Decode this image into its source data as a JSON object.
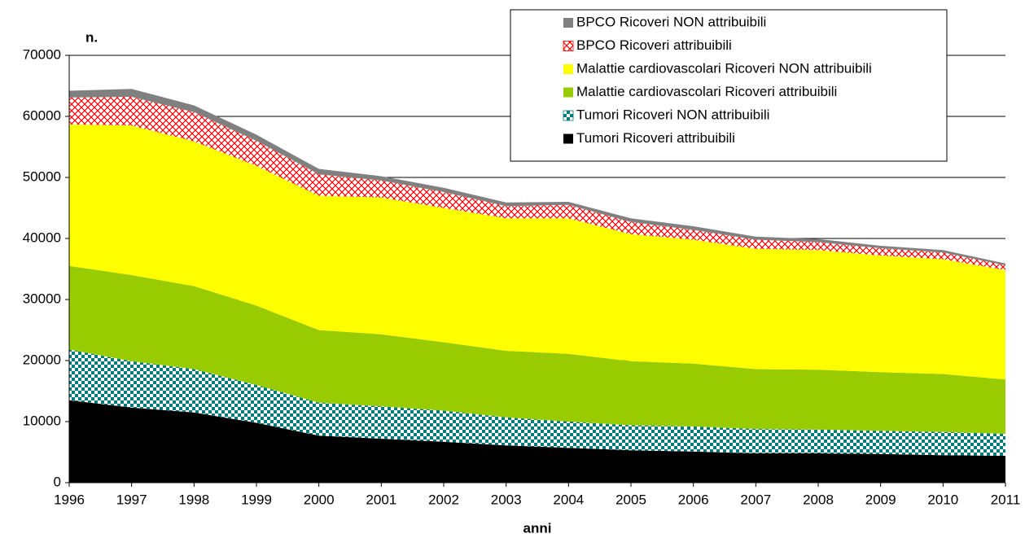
{
  "chart_data": {
    "type": "area",
    "stacked": true,
    "y_label": "n.",
    "x_label": "anni",
    "x": [
      1996,
      1997,
      1998,
      1999,
      2000,
      2001,
      2002,
      2003,
      2004,
      2005,
      2006,
      2007,
      2008,
      2009,
      2010,
      2011
    ],
    "xlim": [
      1996,
      2011
    ],
    "xticks": [
      1996,
      1997,
      1998,
      1999,
      2000,
      2001,
      2002,
      2003,
      2004,
      2005,
      2006,
      2007,
      2008,
      2009,
      2010,
      2011
    ],
    "ylim": [
      0,
      70000
    ],
    "yticks": [
      0,
      10000,
      20000,
      30000,
      40000,
      50000,
      60000,
      70000
    ],
    "grid": true,
    "legend": "upper right",
    "series": [
      {
        "name": "Tumori Ricoveri attribuibili",
        "color": "#000000",
        "pattern": "solid",
        "values": [
          13500,
          12300,
          11500,
          9800,
          7700,
          7200,
          6700,
          6100,
          5700,
          5300,
          5100,
          4800,
          4800,
          4700,
          4500,
          4400
        ]
      },
      {
        "name": "Tumori Ricoveri NON attribuibili",
        "color": "#007a7a",
        "pattern": "checker",
        "values": [
          8300,
          7600,
          7100,
          6200,
          5400,
          5300,
          5100,
          4600,
          4300,
          4100,
          4100,
          4000,
          3900,
          3800,
          3800,
          3600
        ]
      },
      {
        "name": "Malattie cardiovascolari Ricoveri attribuibili",
        "color": "#99cc00",
        "pattern": "solid",
        "values": [
          13700,
          14100,
          13600,
          13000,
          11900,
          11800,
          11200,
          10900,
          11100,
          10500,
          10300,
          9800,
          9800,
          9600,
          9500,
          8900
        ]
      },
      {
        "name": "Malattie cardiovascolari Ricoveri NON attribuibili",
        "color": "#ffff00",
        "pattern": "solid",
        "values": [
          23200,
          24500,
          23700,
          22900,
          22000,
          22400,
          22000,
          21700,
          22200,
          20800,
          20300,
          19700,
          19600,
          19100,
          18800,
          17900
        ]
      },
      {
        "name": "BPCO Ricoveri attribuibili",
        "color": "#ff0000",
        "pattern": "crosshatch",
        "values": [
          4400,
          4700,
          4800,
          4100,
          3500,
          2800,
          2600,
          2000,
          2200,
          2000,
          1600,
          1500,
          1300,
          1200,
          1100,
          800
        ]
      },
      {
        "name": "BPCO Ricoveri NON attribuibili",
        "color": "#808080",
        "pattern": "solid",
        "values": [
          1100,
          1300,
          1100,
          1000,
          900,
          700,
          700,
          600,
          500,
          600,
          600,
          500,
          500,
          400,
          400,
          300
        ]
      }
    ]
  }
}
